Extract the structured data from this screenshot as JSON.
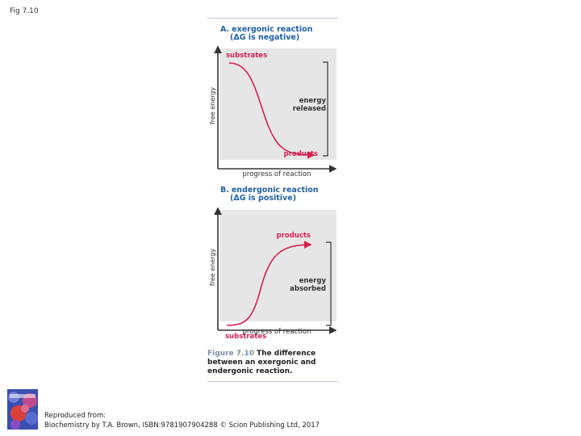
{
  "slide_label": "Fig 7.10",
  "panels": [
    {
      "letter": "A.",
      "title": "exergonic reaction",
      "subtitle": "(ΔG is negative)",
      "y_axis_label": "free energy",
      "x_axis_label": "progress of reaction",
      "start_label": "substrates",
      "end_label": "products",
      "energy_label_1": "energy",
      "energy_label_2": "released"
    },
    {
      "letter": "B.",
      "title": "endergonic reaction",
      "subtitle": "(ΔG is positive)",
      "y_axis_label": "free energy",
      "x_axis_label": "progress of reaction",
      "start_label": "substrates",
      "end_label": "products",
      "energy_label_1": "energy",
      "energy_label_2": "absorbed"
    }
  ],
  "caption": {
    "number": "Figure 7.10",
    "text": "The difference between an exergonic and endergonic reaction."
  },
  "credit": {
    "line1": "Reproduced from:",
    "line2": "Biochemistry by T.A. Brown, ISBN:9781907904288 © Scion Publishing Ltd, 2017"
  },
  "colors": {
    "curve": "#d6204f",
    "panel_bg": "#e6e6e6",
    "title": "#1f5fa6",
    "axis": "#333333"
  }
}
